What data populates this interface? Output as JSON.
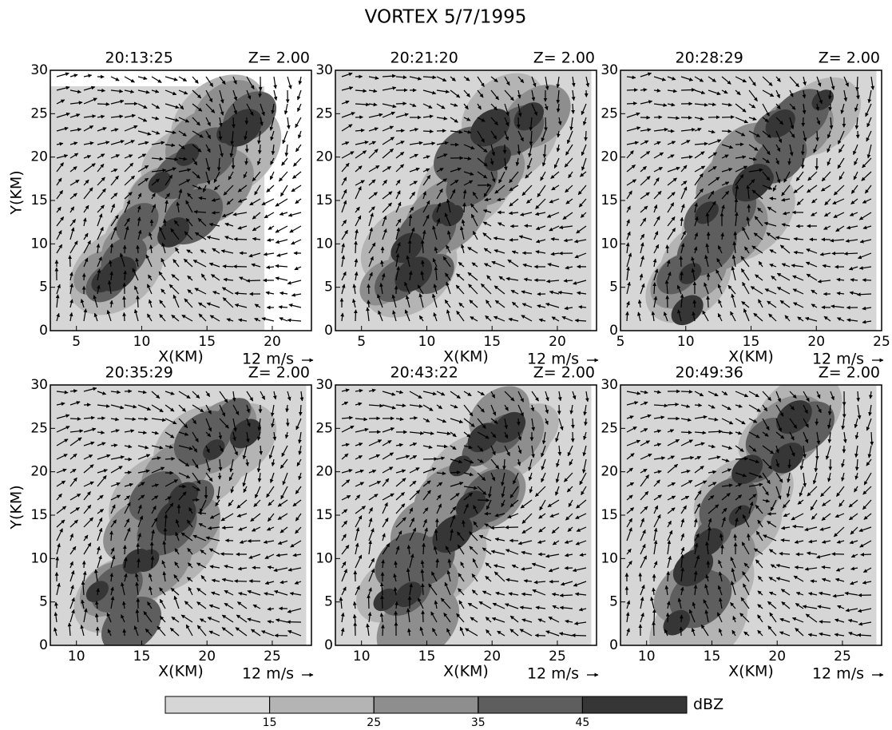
{
  "title": "VORTEX 5/7/1995",
  "chart_data": [
    {
      "type": "vector-field",
      "title": "20:13:25",
      "subtitle": "Z=  2.00",
      "x_label": "X(KM)",
      "y_label": "Y(KM)",
      "reference_vector": "12 m/s",
      "xlim": [
        3,
        23
      ],
      "xticks": [
        5,
        10,
        15,
        20
      ],
      "ylim": [
        0,
        30
      ],
      "yticks": [
        0,
        5,
        10,
        15,
        20,
        25,
        30
      ]
    },
    {
      "type": "vector-field",
      "title": "20:21:20",
      "subtitle": "Z=  2.00",
      "x_label": "X(KM)",
      "reference_vector": "12 m/s",
      "xlim": [
        3,
        23
      ],
      "xticks": [
        5,
        10,
        15,
        20
      ],
      "ylim": [
        0,
        30
      ],
      "yticks": [
        0,
        5,
        10,
        15,
        20,
        25,
        30
      ]
    },
    {
      "type": "vector-field",
      "title": "20:28:29",
      "subtitle": "Z=  2.00",
      "x_label": "X(KM)",
      "reference_vector": "12 m/s",
      "xlim": [
        5,
        25
      ],
      "xticks": [
        5,
        10,
        15,
        20,
        25
      ],
      "ylim": [
        0,
        30
      ],
      "yticks": [
        0,
        5,
        10,
        15,
        20,
        25,
        30
      ]
    },
    {
      "type": "vector-field",
      "title": "20:35:29",
      "subtitle": "Z=  2.00",
      "x_label": "X(KM)",
      "y_label": "Y(KM)",
      "reference_vector": "12 m/s",
      "xlim": [
        8,
        28
      ],
      "xticks": [
        10,
        15,
        20,
        25
      ],
      "ylim": [
        0,
        30
      ],
      "yticks": [
        0,
        5,
        10,
        15,
        20,
        25,
        30
      ]
    },
    {
      "type": "vector-field",
      "title": "20:43:22",
      "subtitle": "Z=  2.00",
      "x_label": "X(KM)",
      "reference_vector": "12 m/s",
      "xlim": [
        8,
        28
      ],
      "xticks": [
        10,
        15,
        20,
        25
      ],
      "ylim": [
        0,
        30
      ],
      "yticks": [
        0,
        5,
        10,
        15,
        20,
        25,
        30
      ]
    },
    {
      "type": "vector-field",
      "title": "20:49:36",
      "subtitle": "Z=  2.00",
      "x_label": "X(KM)",
      "reference_vector": "12 m/s",
      "xlim": [
        8,
        28
      ],
      "xticks": [
        10,
        15,
        20,
        25
      ],
      "ylim": [
        0,
        30
      ],
      "yticks": [
        0,
        5,
        10,
        15,
        20,
        25,
        30
      ]
    }
  ],
  "colorbar": {
    "label": "dBZ",
    "lim": [
      5,
      55
    ],
    "ticks": [
      15,
      25,
      35,
      45
    ],
    "colors": [
      "#d6d6d6",
      "#b4b4b4",
      "#8e8e8e",
      "#5e5e5e",
      "#363636"
    ]
  }
}
